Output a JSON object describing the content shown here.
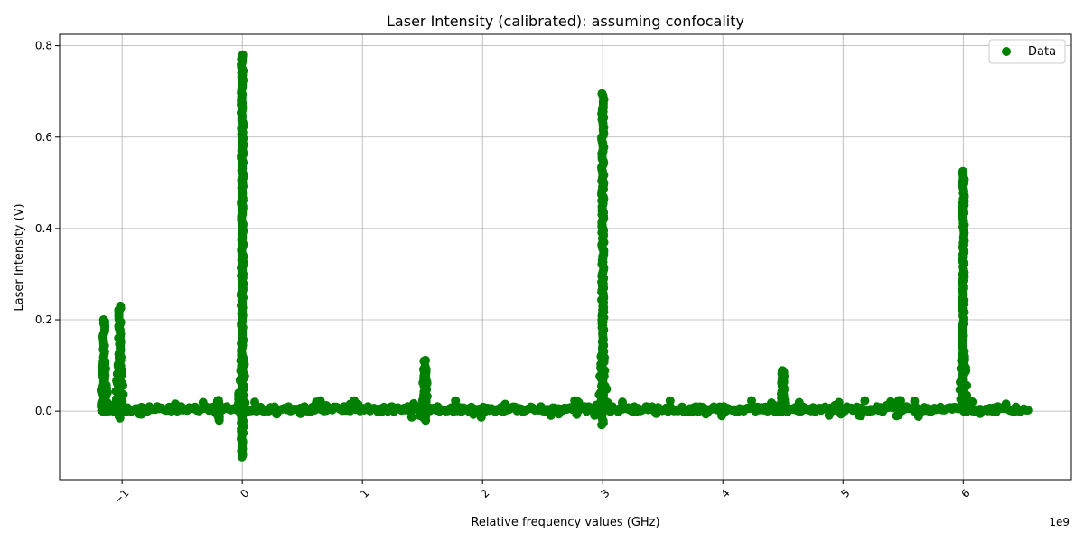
{
  "chart_data": {
    "type": "scatter",
    "title": "Laser Intensity (calibrated): assuming confocality",
    "xlabel": "Relative frequency values (GHz)",
    "ylabel": "Laser Intensity (V)",
    "x_offset_label": "1e9",
    "xlim": [
      -1.52,
      6.9
    ],
    "ylim": [
      -0.15,
      0.825
    ],
    "x_ticks": [
      -1,
      0,
      1,
      2,
      3,
      4,
      5,
      6
    ],
    "x_tick_labels": [
      "−1",
      "0",
      "1",
      "2",
      "3",
      "4",
      "5",
      "6"
    ],
    "y_ticks": [
      0.0,
      0.2,
      0.4,
      0.6,
      0.8
    ],
    "y_tick_labels": [
      "0.0",
      "0.2",
      "0.4",
      "0.6",
      "0.8"
    ],
    "grid": true,
    "legend_position": "top-right",
    "series": [
      {
        "name": "Data",
        "color": "#008000",
        "baseline": {
          "x_start": -1.17,
          "x_end": 6.55,
          "y": 0.004
        },
        "features": [
          {
            "x": -1.15,
            "y_max": 0.2,
            "y_min": 0.0
          },
          {
            "x": -1.02,
            "y_max": 0.23,
            "y_min": -0.015
          },
          {
            "x": -0.2,
            "y_max": 0.0,
            "y_min": -0.02
          },
          {
            "x": 0.0,
            "y_max": 0.78,
            "y_min": -0.1
          },
          {
            "x": 1.52,
            "y_max": 0.09,
            "y_min": -0.02
          },
          {
            "x": 3.0,
            "y_max": 0.695,
            "y_min": -0.03
          },
          {
            "x": 4.5,
            "y_max": 0.085,
            "y_min": 0.0
          },
          {
            "x": 6.0,
            "y_max": 0.525,
            "y_min": 0.0
          }
        ]
      }
    ]
  }
}
